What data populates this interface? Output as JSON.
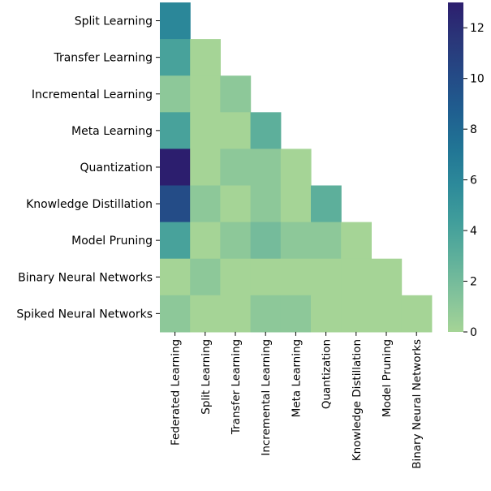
{
  "chart_data": {
    "type": "heatmap",
    "title": "",
    "xlabel": "",
    "ylabel": "",
    "x_categories": [
      "Federated Learning",
      "Split Learning",
      "Transfer Learning",
      "Incremental Learning",
      "Meta Learning",
      "Quantization",
      "Knowledge Distillation",
      "Model Pruning",
      "Binary Neural Networks"
    ],
    "y_categories": [
      "Split Learning",
      "Transfer Learning",
      "Incremental Learning",
      "Meta Learning",
      "Quantization",
      "Knowledge Distillation",
      "Model Pruning",
      "Binary Neural Networks",
      "Spiked Neural Networks"
    ],
    "mask": "upper-triangle",
    "values": [
      [
        6
      ],
      [
        4,
        0
      ],
      [
        1,
        0,
        1
      ],
      [
        4,
        0,
        0,
        3
      ],
      [
        13,
        0,
        1,
        1,
        0
      ],
      [
        10,
        1,
        0,
        1,
        0,
        3
      ],
      [
        4,
        0,
        1,
        2,
        1,
        1,
        0
      ],
      [
        0,
        1,
        0,
        0,
        0,
        0,
        0,
        0
      ],
      [
        1,
        0,
        0,
        1,
        1,
        0,
        0,
        0,
        0
      ]
    ],
    "colorbar": {
      "min": 0,
      "max": 13,
      "ticks": [
        0,
        2,
        4,
        6,
        8,
        10,
        12
      ],
      "colormap": "crest",
      "colors": [
        "#a5d496",
        "#82c29b",
        "#5fb09b",
        "#419e9b",
        "#2d8a9a",
        "#217595",
        "#1f5f90",
        "#244a86",
        "#2a3679",
        "#2c1e6e"
      ]
    }
  }
}
